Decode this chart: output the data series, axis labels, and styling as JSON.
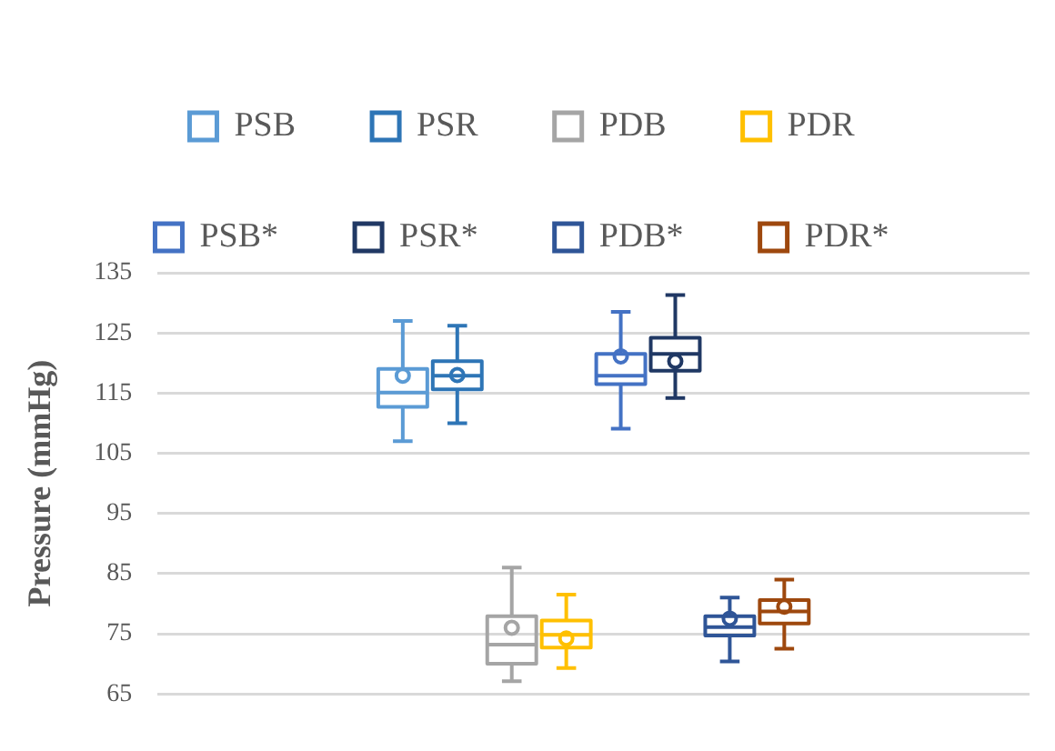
{
  "chart_data": {
    "type": "box",
    "ylabel": "Pressure (mmHg)",
    "categories": [
      null
    ],
    "ylim": [
      65,
      135
    ],
    "yticks": [
      65,
      75,
      85,
      95,
      105,
      115,
      125,
      135
    ],
    "grid": "y",
    "legend": "top",
    "series": [
      {
        "name": "PSB",
        "color": "#5b9bd5",
        "boxes": [
          {
            "low": 107,
            "q1": 112.7,
            "median": 115.1,
            "q3": 119,
            "high": 127,
            "mean": 117.9
          }
        ]
      },
      {
        "name": "PSR",
        "color": "#2e75b6",
        "boxes": [
          {
            "low": 110,
            "q1": 115.6,
            "median": 117.9,
            "q3": 120.3,
            "high": 126.2,
            "mean": 118
          }
        ]
      },
      {
        "name": "PDB",
        "color": "#a5a5a5",
        "boxes": [
          {
            "low": 67.1,
            "q1": 70,
            "median": 73.2,
            "q3": 77.9,
            "high": 86,
            "mean": 76
          }
        ]
      },
      {
        "name": "PDR",
        "color": "#ffc000",
        "boxes": [
          {
            "low": 69.3,
            "q1": 72.7,
            "median": 74.8,
            "q3": 77.2,
            "high": 81.5,
            "mean": 74.2
          }
        ]
      },
      {
        "name": "PSB*",
        "color": "#4472c4",
        "boxes": [
          {
            "low": 109.1,
            "q1": 116.5,
            "median": 117.9,
            "q3": 121.5,
            "high": 128.5,
            "mean": 121.1
          }
        ]
      },
      {
        "name": "PSR*",
        "color": "#203864",
        "boxes": [
          {
            "low": 114.2,
            "q1": 118.7,
            "median": 121.5,
            "q3": 124.2,
            "high": 131.3,
            "mean": 120.3
          }
        ]
      },
      {
        "name": "PDB*",
        "color": "#2f5597",
        "boxes": [
          {
            "low": 70.4,
            "q1": 74.7,
            "median": 76.1,
            "q3": 77.9,
            "high": 81,
            "mean": 77.5
          }
        ]
      },
      {
        "name": "PDR*",
        "color": "#9e480e",
        "boxes": [
          {
            "low": 72.5,
            "q1": 76.7,
            "median": 78.7,
            "q3": 80.6,
            "high": 84,
            "mean": 79.5
          }
        ]
      }
    ]
  }
}
